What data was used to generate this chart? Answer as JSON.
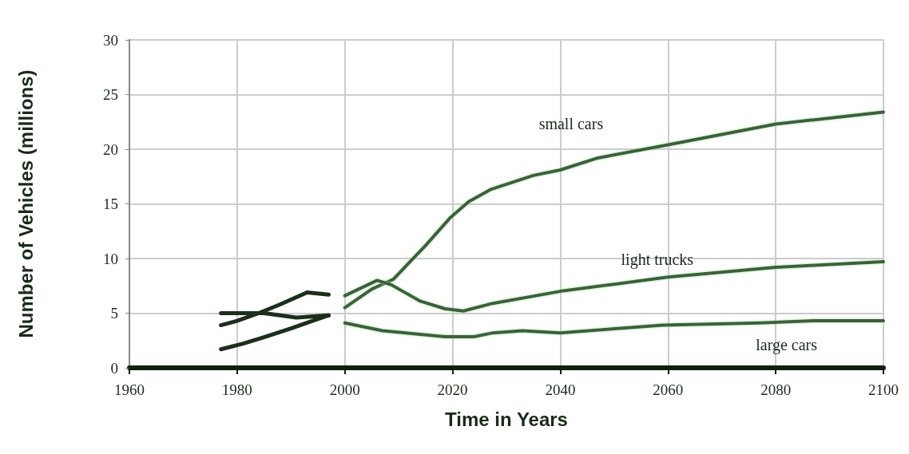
{
  "chart_data": {
    "type": "line",
    "xlabel": "Time in Years",
    "ylabel": "Number of Vehicles (millions)",
    "xlim": [
      1960,
      2100
    ],
    "xticks": [
      1960,
      1980,
      2000,
      2020,
      2040,
      2060,
      2080,
      2100
    ],
    "ylim": [
      0,
      30
    ],
    "yticks": [
      0,
      5,
      10,
      15,
      20,
      25,
      30
    ],
    "grid": true,
    "legend": false,
    "marker": "none",
    "line_style": "solid",
    "series": [
      {
        "color": "#1c2e1c",
        "x": [
          1977,
          1980,
          1984,
          1988,
          1993,
          1997
        ],
        "values": [
          3.9,
          4.3,
          5.0,
          5.8,
          6.9,
          6.7
        ]
      },
      {
        "color": "#1c2e1c",
        "x": [
          1977,
          1981,
          1985,
          1991,
          1997
        ],
        "values": [
          5.0,
          5.0,
          5.0,
          4.6,
          4.8
        ]
      },
      {
        "color": "#1c2e1c",
        "x": [
          1977,
          1981,
          1985,
          1990,
          1994,
          1997
        ],
        "values": [
          1.7,
          2.2,
          2.8,
          3.6,
          4.3,
          4.8
        ]
      },
      {
        "name": "small cars",
        "color": "#3d5e3d",
        "x": [
          2000,
          2005,
          2009,
          2015,
          2019.5,
          2023,
          2027,
          2035,
          2040,
          2047,
          2060,
          2080,
          2100
        ],
        "values": [
          5.5,
          7.2,
          8.1,
          11.2,
          13.7,
          15.2,
          16.3,
          17.6,
          18.1,
          19.2,
          20.4,
          22.3,
          23.4
        ]
      },
      {
        "name": "light trucks",
        "color": "#3d5e3d",
        "x": [
          2000,
          2006,
          2008.6,
          2014,
          2018.6,
          2022,
          2027.5,
          2040,
          2060,
          2080,
          2100
        ],
        "values": [
          6.6,
          8.0,
          7.6,
          6.1,
          5.4,
          5.2,
          5.9,
          7.0,
          8.3,
          9.2,
          9.7
        ]
      },
      {
        "name": "large cars",
        "color": "#3d5e3d",
        "x": [
          2000,
          2007,
          2018.6,
          2024,
          2027.5,
          2033,
          2040,
          2059,
          2077,
          2087,
          2100
        ],
        "values": [
          4.1,
          3.4,
          2.85,
          2.85,
          3.2,
          3.4,
          3.2,
          3.9,
          4.1,
          4.3,
          4.3
        ]
      }
    ]
  }
}
